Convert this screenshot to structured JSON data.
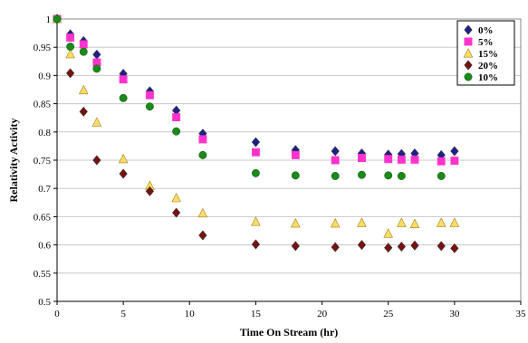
{
  "chart_data": {
    "type": "scatter",
    "title": "",
    "xlabel": "Time On Stream (hr)",
    "ylabel": "Relativity Activity",
    "xlim": [
      0,
      35
    ],
    "ylim": [
      0.5,
      1
    ],
    "xticks": [
      "0",
      "5",
      "10",
      "15",
      "20",
      "25",
      "30",
      "35"
    ],
    "yticks": [
      "0.5",
      "0.55",
      "0.6",
      "0.65",
      "0.7",
      "0.75",
      "0.8",
      "0.85",
      "0.9",
      "0.95",
      "1"
    ],
    "grid": "horizontal",
    "legend_position": "top-right",
    "series": [
      {
        "name": "0%",
        "marker": "diamond",
        "color": "#1f1f8a",
        "x": [
          0,
          1,
          2,
          3,
          5,
          7,
          9,
          11,
          15,
          18,
          21,
          23,
          25,
          26,
          27,
          29,
          30
        ],
        "y": [
          1.0,
          0.973,
          0.961,
          0.937,
          0.903,
          0.872,
          0.838,
          0.797,
          0.782,
          0.768,
          0.766,
          0.762,
          0.76,
          0.761,
          0.762,
          0.759,
          0.766
        ]
      },
      {
        "name": "5%",
        "marker": "square",
        "color": "#ff33cc",
        "x": [
          0,
          1,
          2,
          3,
          5,
          7,
          9,
          11,
          15,
          18,
          21,
          23,
          25,
          26,
          27,
          29,
          30
        ],
        "y": [
          1.0,
          0.967,
          0.955,
          0.923,
          0.893,
          0.865,
          0.826,
          0.787,
          0.764,
          0.759,
          0.75,
          0.754,
          0.752,
          0.751,
          0.751,
          0.748,
          0.749
        ]
      },
      {
        "name": "15%",
        "marker": "triangle",
        "color": "#ffdd66",
        "x": [
          0,
          1,
          2,
          3,
          5,
          7,
          9,
          11,
          15,
          18,
          21,
          23,
          25,
          26,
          27,
          29,
          30
        ],
        "y": [
          1.0,
          0.938,
          0.874,
          0.817,
          0.752,
          0.705,
          0.683,
          0.656,
          0.641,
          0.638,
          0.638,
          0.639,
          0.62,
          0.639,
          0.637,
          0.639,
          0.639
        ]
      },
      {
        "name": "20%",
        "marker": "diamond",
        "color": "#7a1010",
        "x": [
          0,
          1,
          2,
          3,
          5,
          7,
          9,
          11,
          15,
          18,
          21,
          23,
          25,
          26,
          27,
          29,
          30
        ],
        "y": [
          1.0,
          0.904,
          0.836,
          0.75,
          0.726,
          0.695,
          0.657,
          0.617,
          0.601,
          0.598,
          0.596,
          0.6,
          0.595,
          0.597,
          0.599,
          0.598,
          0.594
        ]
      },
      {
        "name": "10%",
        "marker": "circle",
        "color": "#1a8a1a",
        "x": [
          0,
          1,
          2,
          3,
          5,
          7,
          9,
          11,
          15,
          18,
          21,
          23,
          25,
          26,
          29
        ],
        "y": [
          1.0,
          0.951,
          0.942,
          0.912,
          0.86,
          0.845,
          0.801,
          0.759,
          0.727,
          0.723,
          0.722,
          0.724,
          0.723,
          0.722,
          0.722
        ]
      }
    ]
  }
}
